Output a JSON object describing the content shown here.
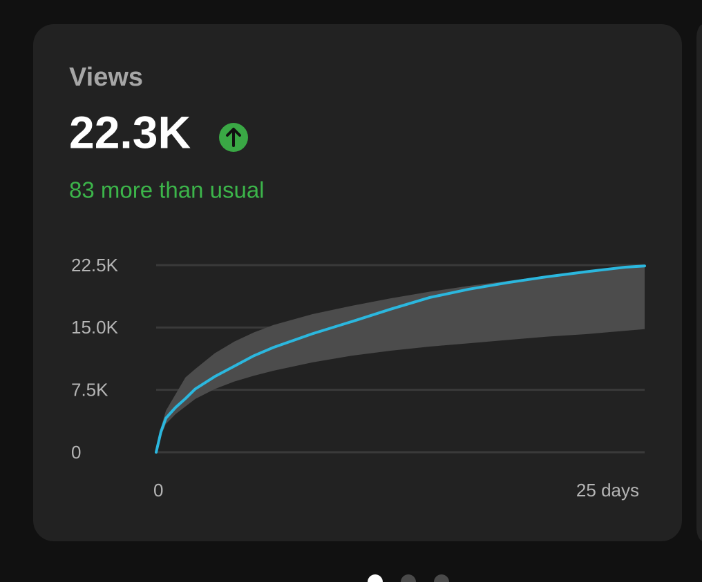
{
  "card": {
    "title": "Views",
    "value": "22.3K",
    "delta": "83 more than usual"
  },
  "chart_data": {
    "type": "line",
    "x": [
      0,
      0.25,
      0.5,
      1,
      1.5,
      2,
      3,
      4,
      5,
      6,
      8,
      10,
      12,
      14,
      16,
      18,
      20,
      22,
      24,
      25
    ],
    "series": [
      {
        "color": "#2bb7de",
        "values": [
          0,
          2500,
          4100,
          5400,
          6450,
          7600,
          9100,
          10350,
          11600,
          12600,
          14250,
          15700,
          17200,
          18600,
          19600,
          20400,
          21100,
          21700,
          22250,
          22400
        ]
      }
    ],
    "band": {
      "color": "#4c4c4c",
      "upper": [
        0,
        3000,
        5000,
        7000,
        9000,
        10000,
        11900,
        13300,
        14400,
        15300,
        16600,
        17600,
        18500,
        19300,
        20000,
        20600,
        21200,
        21700,
        22200,
        22500
      ],
      "lower": [
        0,
        2000,
        3400,
        4600,
        5500,
        6400,
        7600,
        8500,
        9200,
        9800,
        10800,
        11600,
        12200,
        12700,
        13100,
        13500,
        13900,
        14200,
        14600,
        14800
      ]
    },
    "xlim": [
      0,
      25
    ],
    "xticks": [
      0,
      {
        "value": 25,
        "label": "25 days"
      }
    ],
    "ylim": [
      0,
      22500
    ],
    "yticks": [
      0,
      {
        "value": 7500,
        "label": "7.5K"
      },
      {
        "value": 15000,
        "label": "15.0K"
      },
      {
        "value": 22500,
        "label": "22.5K"
      }
    ],
    "grid": true
  }
}
